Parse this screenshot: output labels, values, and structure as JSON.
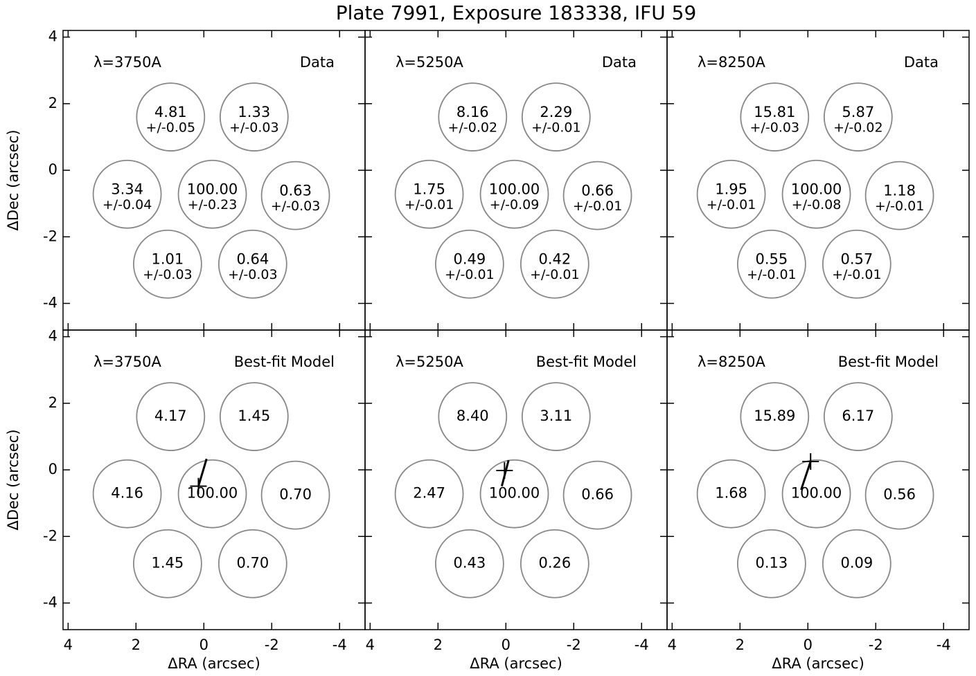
{
  "title": "Plate 7991, Exposure 183338, IFU 59",
  "chart_data": [
    {
      "type": "fiber-map",
      "wavelength_label": "λ=3750A",
      "label": "Data",
      "ylabel": "ΔDec (arcsec)",
      "xlim": [
        4.15,
        -4.75
      ],
      "ylim": [
        -4.8,
        4.2
      ],
      "xticks": [
        4,
        2,
        0,
        -2,
        -4
      ],
      "yticks": [
        -4,
        -2,
        0,
        2,
        4
      ],
      "fiber_radius": 1,
      "fibers": {
        "x": [
          0.98,
          -1.48,
          2.26,
          -0.25,
          -2.7,
          1.07,
          -1.44
        ],
        "y": [
          1.6,
          1.6,
          -0.72,
          -0.72,
          -0.76,
          -2.82,
          -2.82
        ],
        "values": [
          4.81,
          1.33,
          3.34,
          100,
          0.63,
          1.01,
          0.64
        ],
        "value_labels": [
          "4.81",
          "1.33",
          "3.34",
          "100.00",
          "0.63",
          "1.01",
          "0.64"
        ],
        "errors": [
          0.05,
          0.03,
          0.04,
          0.23,
          0.03,
          0.03,
          0.03
        ],
        "error_labels": [
          "+/-0.05",
          "+/-0.03",
          "+/-0.04",
          "+/-0.23",
          "+/-0.03",
          "+/-0.03",
          "+/-0.03"
        ]
      }
    },
    {
      "type": "fiber-map",
      "wavelength_label": "λ=5250A",
      "label": "Data",
      "xlim": [
        4.15,
        -4.75
      ],
      "ylim": [
        -4.8,
        4.2
      ],
      "xticks": [
        4,
        2,
        0,
        -2,
        -4
      ],
      "yticks": [
        -4,
        -2,
        0,
        2,
        4
      ],
      "fiber_radius": 1,
      "fibers": {
        "x": [
          0.98,
          -1.48,
          2.26,
          -0.25,
          -2.7,
          1.07,
          -1.44
        ],
        "y": [
          1.6,
          1.6,
          -0.72,
          -0.72,
          -0.76,
          -2.82,
          -2.82
        ],
        "values": [
          8.16,
          2.29,
          1.75,
          100,
          0.66,
          0.49,
          0.42
        ],
        "value_labels": [
          "8.16",
          "2.29",
          "1.75",
          "100.00",
          "0.66",
          "0.49",
          "0.42"
        ],
        "errors": [
          0.02,
          0.01,
          0.01,
          0.09,
          0.01,
          0.01,
          0.01
        ],
        "error_labels": [
          "+/-0.02",
          "+/-0.01",
          "+/-0.01",
          "+/-0.09",
          "+/-0.01",
          "+/-0.01",
          "+/-0.01"
        ]
      }
    },
    {
      "type": "fiber-map",
      "wavelength_label": "λ=8250A",
      "label": "Data",
      "xlim": [
        4.15,
        -4.75
      ],
      "ylim": [
        -4.8,
        4.2
      ],
      "xticks": [
        4,
        2,
        0,
        -2,
        -4
      ],
      "yticks": [
        -4,
        -2,
        0,
        2,
        4
      ],
      "fiber_radius": 1,
      "fibers": {
        "x": [
          0.98,
          -1.48,
          2.26,
          -0.25,
          -2.7,
          1.07,
          -1.44
        ],
        "y": [
          1.6,
          1.6,
          -0.72,
          -0.72,
          -0.76,
          -2.82,
          -2.82
        ],
        "values": [
          15.81,
          5.87,
          1.95,
          100,
          1.18,
          0.55,
          0.57
        ],
        "value_labels": [
          "15.81",
          "5.87",
          "1.95",
          "100.00",
          "1.18",
          "0.55",
          "0.57"
        ],
        "errors": [
          0.03,
          0.02,
          0.01,
          0.08,
          0.01,
          0.01,
          0.01
        ],
        "error_labels": [
          "+/-0.03",
          "+/-0.02",
          "+/-0.01",
          "+/-0.08",
          "+/-0.01",
          "+/-0.01",
          "+/-0.01"
        ]
      }
    },
    {
      "type": "fiber-map",
      "wavelength_label": "λ=3750A",
      "label": "Best-fit Model",
      "ylabel": "ΔDec (arcsec)",
      "xlabel": "ΔRA (arcsec)",
      "xlim": [
        4.15,
        -4.75
      ],
      "ylim": [
        -4.8,
        4.2
      ],
      "xticks": [
        4,
        2,
        0,
        -2,
        -4
      ],
      "yticks": [
        -4,
        -2,
        0,
        2,
        4
      ],
      "fiber_radius": 1,
      "fibers": {
        "x": [
          0.98,
          -1.48,
          2.26,
          -0.25,
          -2.7,
          1.07,
          -1.44
        ],
        "y": [
          1.6,
          1.6,
          -0.72,
          -0.72,
          -0.76,
          -2.82,
          -2.82
        ],
        "values": [
          4.17,
          1.45,
          4.16,
          100,
          0.7,
          1.45,
          0.7
        ],
        "value_labels": [
          "4.17",
          "1.45",
          "4.16",
          "100.00",
          "0.70",
          "1.45",
          "0.70"
        ]
      },
      "track": {
        "x": [
          0.16,
          -0.08
        ],
        "y": [
          -0.49,
          0.33
        ]
      },
      "center": {
        "x": 0.16,
        "y": -0.49
      }
    },
    {
      "type": "fiber-map",
      "wavelength_label": "λ=5250A",
      "label": "Best-fit Model",
      "xlabel": "ΔRA (arcsec)",
      "xlim": [
        4.15,
        -4.75
      ],
      "ylim": [
        -4.8,
        4.2
      ],
      "xticks": [
        4,
        2,
        0,
        -2,
        -4
      ],
      "yticks": [
        -4,
        -2,
        0,
        2,
        4
      ],
      "fiber_radius": 1,
      "fibers": {
        "x": [
          0.98,
          -1.48,
          2.26,
          -0.25,
          -2.7,
          1.07,
          -1.44
        ],
        "y": [
          1.6,
          1.6,
          -0.72,
          -0.72,
          -0.76,
          -2.82,
          -2.82
        ],
        "values": [
          8.4,
          3.11,
          2.47,
          100,
          0.66,
          0.43,
          0.26
        ],
        "value_labels": [
          "8.40",
          "3.11",
          "2.47",
          "100.00",
          "0.66",
          "0.43",
          "0.26"
        ]
      },
      "track": {
        "x": [
          0.12,
          -0.08
        ],
        "y": [
          -0.49,
          0.29
        ]
      },
      "center": {
        "x": 0.04,
        "y": -0.02
      }
    },
    {
      "type": "fiber-map",
      "wavelength_label": "λ=8250A",
      "label": "Best-fit Model",
      "xlabel": "ΔRA (arcsec)",
      "xlim": [
        4.15,
        -4.75
      ],
      "ylim": [
        -4.8,
        4.2
      ],
      "xticks": [
        4,
        2,
        0,
        -2,
        -4
      ],
      "yticks": [
        -4,
        -2,
        0,
        2,
        4
      ],
      "fiber_radius": 1,
      "fibers": {
        "x": [
          0.98,
          -1.48,
          2.26,
          -0.25,
          -2.7,
          1.07,
          -1.44
        ],
        "y": [
          1.6,
          1.6,
          -0.72,
          -0.72,
          -0.76,
          -2.82,
          -2.82
        ],
        "values": [
          15.89,
          6.17,
          1.68,
          100,
          0.56,
          0.13,
          0.09
        ],
        "value_labels": [
          "15.89",
          "6.17",
          "1.68",
          "100.00",
          "0.56",
          "0.13",
          "0.09"
        ]
      },
      "track": {
        "x": [
          0.2,
          -0.08
        ],
        "y": [
          -0.6,
          0.25
        ]
      },
      "center": {
        "x": -0.08,
        "y": 0.25
      }
    }
  ]
}
